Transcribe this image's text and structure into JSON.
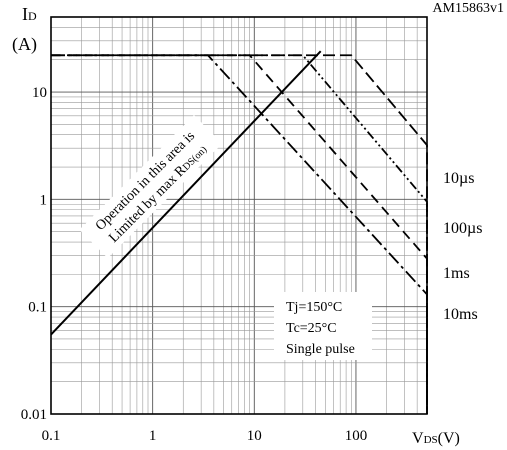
{
  "chart_data": {
    "type": "line",
    "title": "",
    "figure_id": "AM15863v1",
    "xscale": "log",
    "yscale": "log",
    "xlim": [
      0.1,
      500
    ],
    "ylim": [
      0.01,
      50
    ],
    "grid": true,
    "ylabel_main": "I",
    "ylabel_sub": "D",
    "ylabel_unit": "(A)",
    "xlabel_main": "V",
    "xlabel_sub": "DS",
    "xlabel_unit": "(V)",
    "x_ticks": [
      {
        "value": 0.1,
        "label": "0.1"
      },
      {
        "value": 1,
        "label": "1"
      },
      {
        "value": 10,
        "label": "10"
      },
      {
        "value": 100,
        "label": "100"
      }
    ],
    "y_ticks": [
      {
        "value": 0.01,
        "label": "0.01"
      },
      {
        "value": 0.1,
        "label": "0.1"
      },
      {
        "value": 1,
        "label": "1"
      },
      {
        "value": 10,
        "label": "10"
      }
    ],
    "series": [
      {
        "name": "",
        "style": "solid",
        "points": [
          [
            0.1,
            0.055
          ],
          [
            45,
            24
          ]
        ]
      },
      {
        "name": "10µs",
        "style": "dash",
        "points": [
          [
            0.1,
            22
          ],
          [
            90,
            22
          ],
          [
            500,
            3.2
          ],
          [
            500,
            0.01
          ]
        ]
      },
      {
        "name": "100µs",
        "style": "dashdotdot",
        "points": [
          [
            0.1,
            22
          ],
          [
            30,
            22
          ],
          [
            500,
            0.95
          ],
          [
            500,
            0.01
          ]
        ]
      },
      {
        "name": "1ms",
        "style": "longdash",
        "points": [
          [
            0.1,
            22
          ],
          [
            9,
            22
          ],
          [
            500,
            0.28
          ],
          [
            500,
            0.01
          ]
        ]
      },
      {
        "name": "10ms",
        "style": "dashdot",
        "points": [
          [
            0.1,
            22
          ],
          [
            3.5,
            22
          ],
          [
            500,
            0.13
          ],
          [
            500,
            0.01
          ]
        ]
      }
    ],
    "annotations": {
      "rds_line1": "Operation in this area is",
      "rds_line2": "Limited by max R",
      "rds_sub": "DS(on)",
      "conditions": [
        "Tj=150°C",
        "Tc=25°C",
        "Single pulse"
      ]
    }
  }
}
